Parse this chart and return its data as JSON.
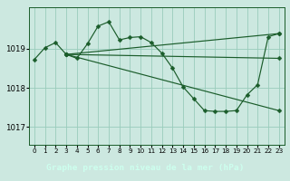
{
  "title": "Graphe pression niveau de la mer (hPa)",
  "bg": "#cce8e0",
  "grid_color": "#99ccbb",
  "line_color": "#1a5c2a",
  "xlabel_bg": "#2a6b3a",
  "xlabel_fg": "#ccffee",
  "xlim": [
    -0.5,
    23.5
  ],
  "ylim": [
    1016.55,
    1020.05
  ],
  "yticks": [
    1017,
    1018,
    1019
  ],
  "xticks": [
    0,
    1,
    2,
    3,
    4,
    5,
    6,
    7,
    8,
    9,
    10,
    11,
    12,
    13,
    14,
    15,
    16,
    17,
    18,
    19,
    20,
    21,
    22,
    23
  ],
  "line1_x": [
    0,
    1,
    2,
    3,
    4,
    5,
    6,
    7,
    8,
    9,
    10,
    11,
    12,
    13,
    14,
    15,
    16,
    17,
    18,
    19,
    20,
    21,
    22,
    23
  ],
  "line1_y": [
    1018.72,
    1019.02,
    1019.15,
    1018.85,
    1018.75,
    1019.12,
    1019.57,
    1019.68,
    1019.22,
    1019.28,
    1019.3,
    1019.15,
    1018.88,
    1018.5,
    1018.02,
    1017.72,
    1017.42,
    1017.4,
    1017.4,
    1017.42,
    1017.82,
    1018.08,
    1019.3,
    1019.38
  ],
  "line2_x": [
    3,
    23
  ],
  "line2_y": [
    1018.85,
    1019.38
  ],
  "line3_x": [
    3,
    23
  ],
  "line3_y": [
    1018.85,
    1017.42
  ],
  "line4_x": [
    3,
    23
  ],
  "line4_y": [
    1018.85,
    1018.75
  ]
}
